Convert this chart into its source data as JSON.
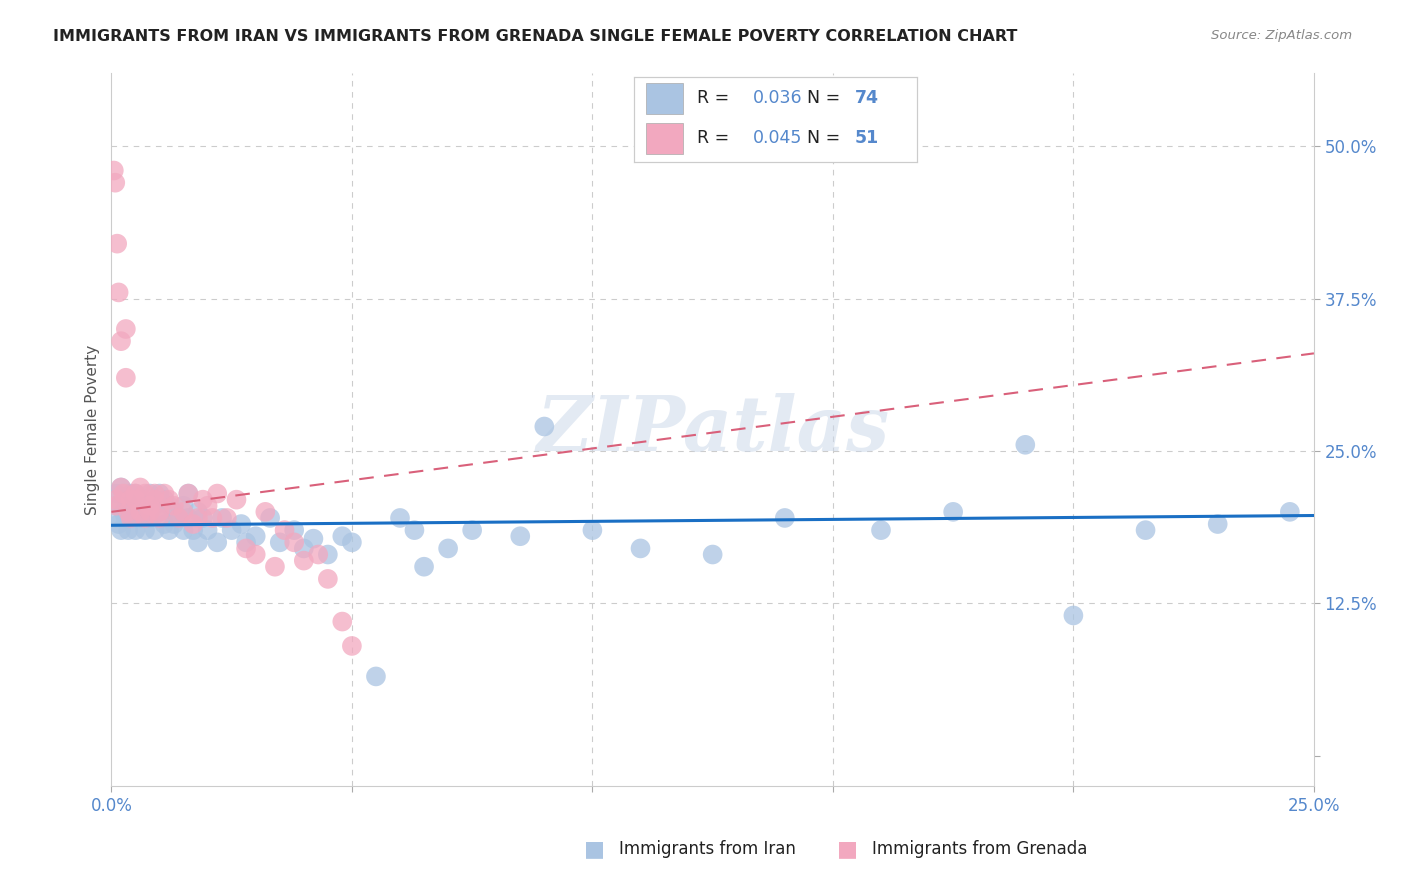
{
  "title": "IMMIGRANTS FROM IRAN VS IMMIGRANTS FROM GRENADA SINGLE FEMALE POVERTY CORRELATION CHART",
  "source": "Source: ZipAtlas.com",
  "ylabel": "Single Female Poverty",
  "series1_label": "Immigrants from Iran",
  "series2_label": "Immigrants from Grenada",
  "R1": "0.036",
  "N1": "74",
  "R2": "0.045",
  "N2": "51",
  "color1": "#aac4e2",
  "color2": "#f2a8bf",
  "line1_color": "#1a6fc4",
  "line2_color": "#d9607a",
  "watermark": "ZIPatlas",
  "background_color": "#ffffff",
  "grid_color": "#cccccc",
  "axis_tick_color": "#5588cc",
  "iran_x": [
    0.0008,
    0.001,
    0.0012,
    0.0015,
    0.002,
    0.002,
    0.0025,
    0.003,
    0.003,
    0.0035,
    0.004,
    0.004,
    0.005,
    0.005,
    0.005,
    0.006,
    0.006,
    0.007,
    0.007,
    0.008,
    0.008,
    0.009,
    0.009,
    0.01,
    0.01,
    0.011,
    0.011,
    0.012,
    0.012,
    0.013,
    0.013,
    0.014,
    0.015,
    0.015,
    0.016,
    0.016,
    0.017,
    0.018,
    0.018,
    0.019,
    0.02,
    0.022,
    0.023,
    0.025,
    0.027,
    0.028,
    0.03,
    0.033,
    0.035,
    0.038,
    0.04,
    0.042,
    0.045,
    0.048,
    0.05,
    0.055,
    0.06,
    0.063,
    0.065,
    0.07,
    0.075,
    0.085,
    0.09,
    0.1,
    0.11,
    0.125,
    0.14,
    0.16,
    0.175,
    0.19,
    0.2,
    0.215,
    0.23,
    0.245
  ],
  "iran_y": [
    0.195,
    0.215,
    0.205,
    0.19,
    0.22,
    0.185,
    0.2,
    0.195,
    0.21,
    0.185,
    0.215,
    0.195,
    0.2,
    0.215,
    0.185,
    0.21,
    0.195,
    0.2,
    0.185,
    0.215,
    0.195,
    0.205,
    0.185,
    0.2,
    0.215,
    0.21,
    0.19,
    0.205,
    0.185,
    0.2,
    0.19,
    0.195,
    0.205,
    0.185,
    0.215,
    0.195,
    0.185,
    0.2,
    0.175,
    0.195,
    0.185,
    0.175,
    0.195,
    0.185,
    0.19,
    0.175,
    0.18,
    0.195,
    0.175,
    0.185,
    0.17,
    0.178,
    0.165,
    0.18,
    0.175,
    0.065,
    0.195,
    0.185,
    0.155,
    0.17,
    0.185,
    0.18,
    0.27,
    0.185,
    0.17,
    0.165,
    0.195,
    0.185,
    0.2,
    0.255,
    0.115,
    0.185,
    0.19,
    0.2
  ],
  "grenada_x": [
    0.0005,
    0.0008,
    0.001,
    0.001,
    0.0012,
    0.0015,
    0.002,
    0.002,
    0.0025,
    0.003,
    0.003,
    0.0035,
    0.004,
    0.004,
    0.005,
    0.005,
    0.006,
    0.006,
    0.007,
    0.007,
    0.008,
    0.008,
    0.009,
    0.009,
    0.01,
    0.01,
    0.011,
    0.012,
    0.013,
    0.014,
    0.015,
    0.016,
    0.017,
    0.018,
    0.019,
    0.02,
    0.021,
    0.022,
    0.024,
    0.026,
    0.028,
    0.03,
    0.032,
    0.034,
    0.036,
    0.038,
    0.04,
    0.043,
    0.045,
    0.048,
    0.05
  ],
  "grenada_y": [
    0.48,
    0.47,
    0.21,
    0.205,
    0.42,
    0.38,
    0.34,
    0.22,
    0.215,
    0.35,
    0.31,
    0.2,
    0.21,
    0.195,
    0.215,
    0.21,
    0.22,
    0.2,
    0.215,
    0.195,
    0.205,
    0.2,
    0.21,
    0.215,
    0.195,
    0.2,
    0.215,
    0.21,
    0.205,
    0.195,
    0.2,
    0.215,
    0.19,
    0.195,
    0.21,
    0.205,
    0.195,
    0.215,
    0.195,
    0.21,
    0.17,
    0.165,
    0.2,
    0.155,
    0.185,
    0.175,
    0.16,
    0.165,
    0.145,
    0.11,
    0.09
  ],
  "xlim": [
    0.0,
    0.25
  ],
  "ylim": [
    -0.025,
    0.56
  ],
  "iran_line_x": [
    0.0,
    0.25
  ],
  "iran_line_y": [
    0.189,
    0.197
  ],
  "grenada_line_x": [
    0.0,
    0.25
  ],
  "grenada_line_y": [
    0.2,
    0.33
  ]
}
